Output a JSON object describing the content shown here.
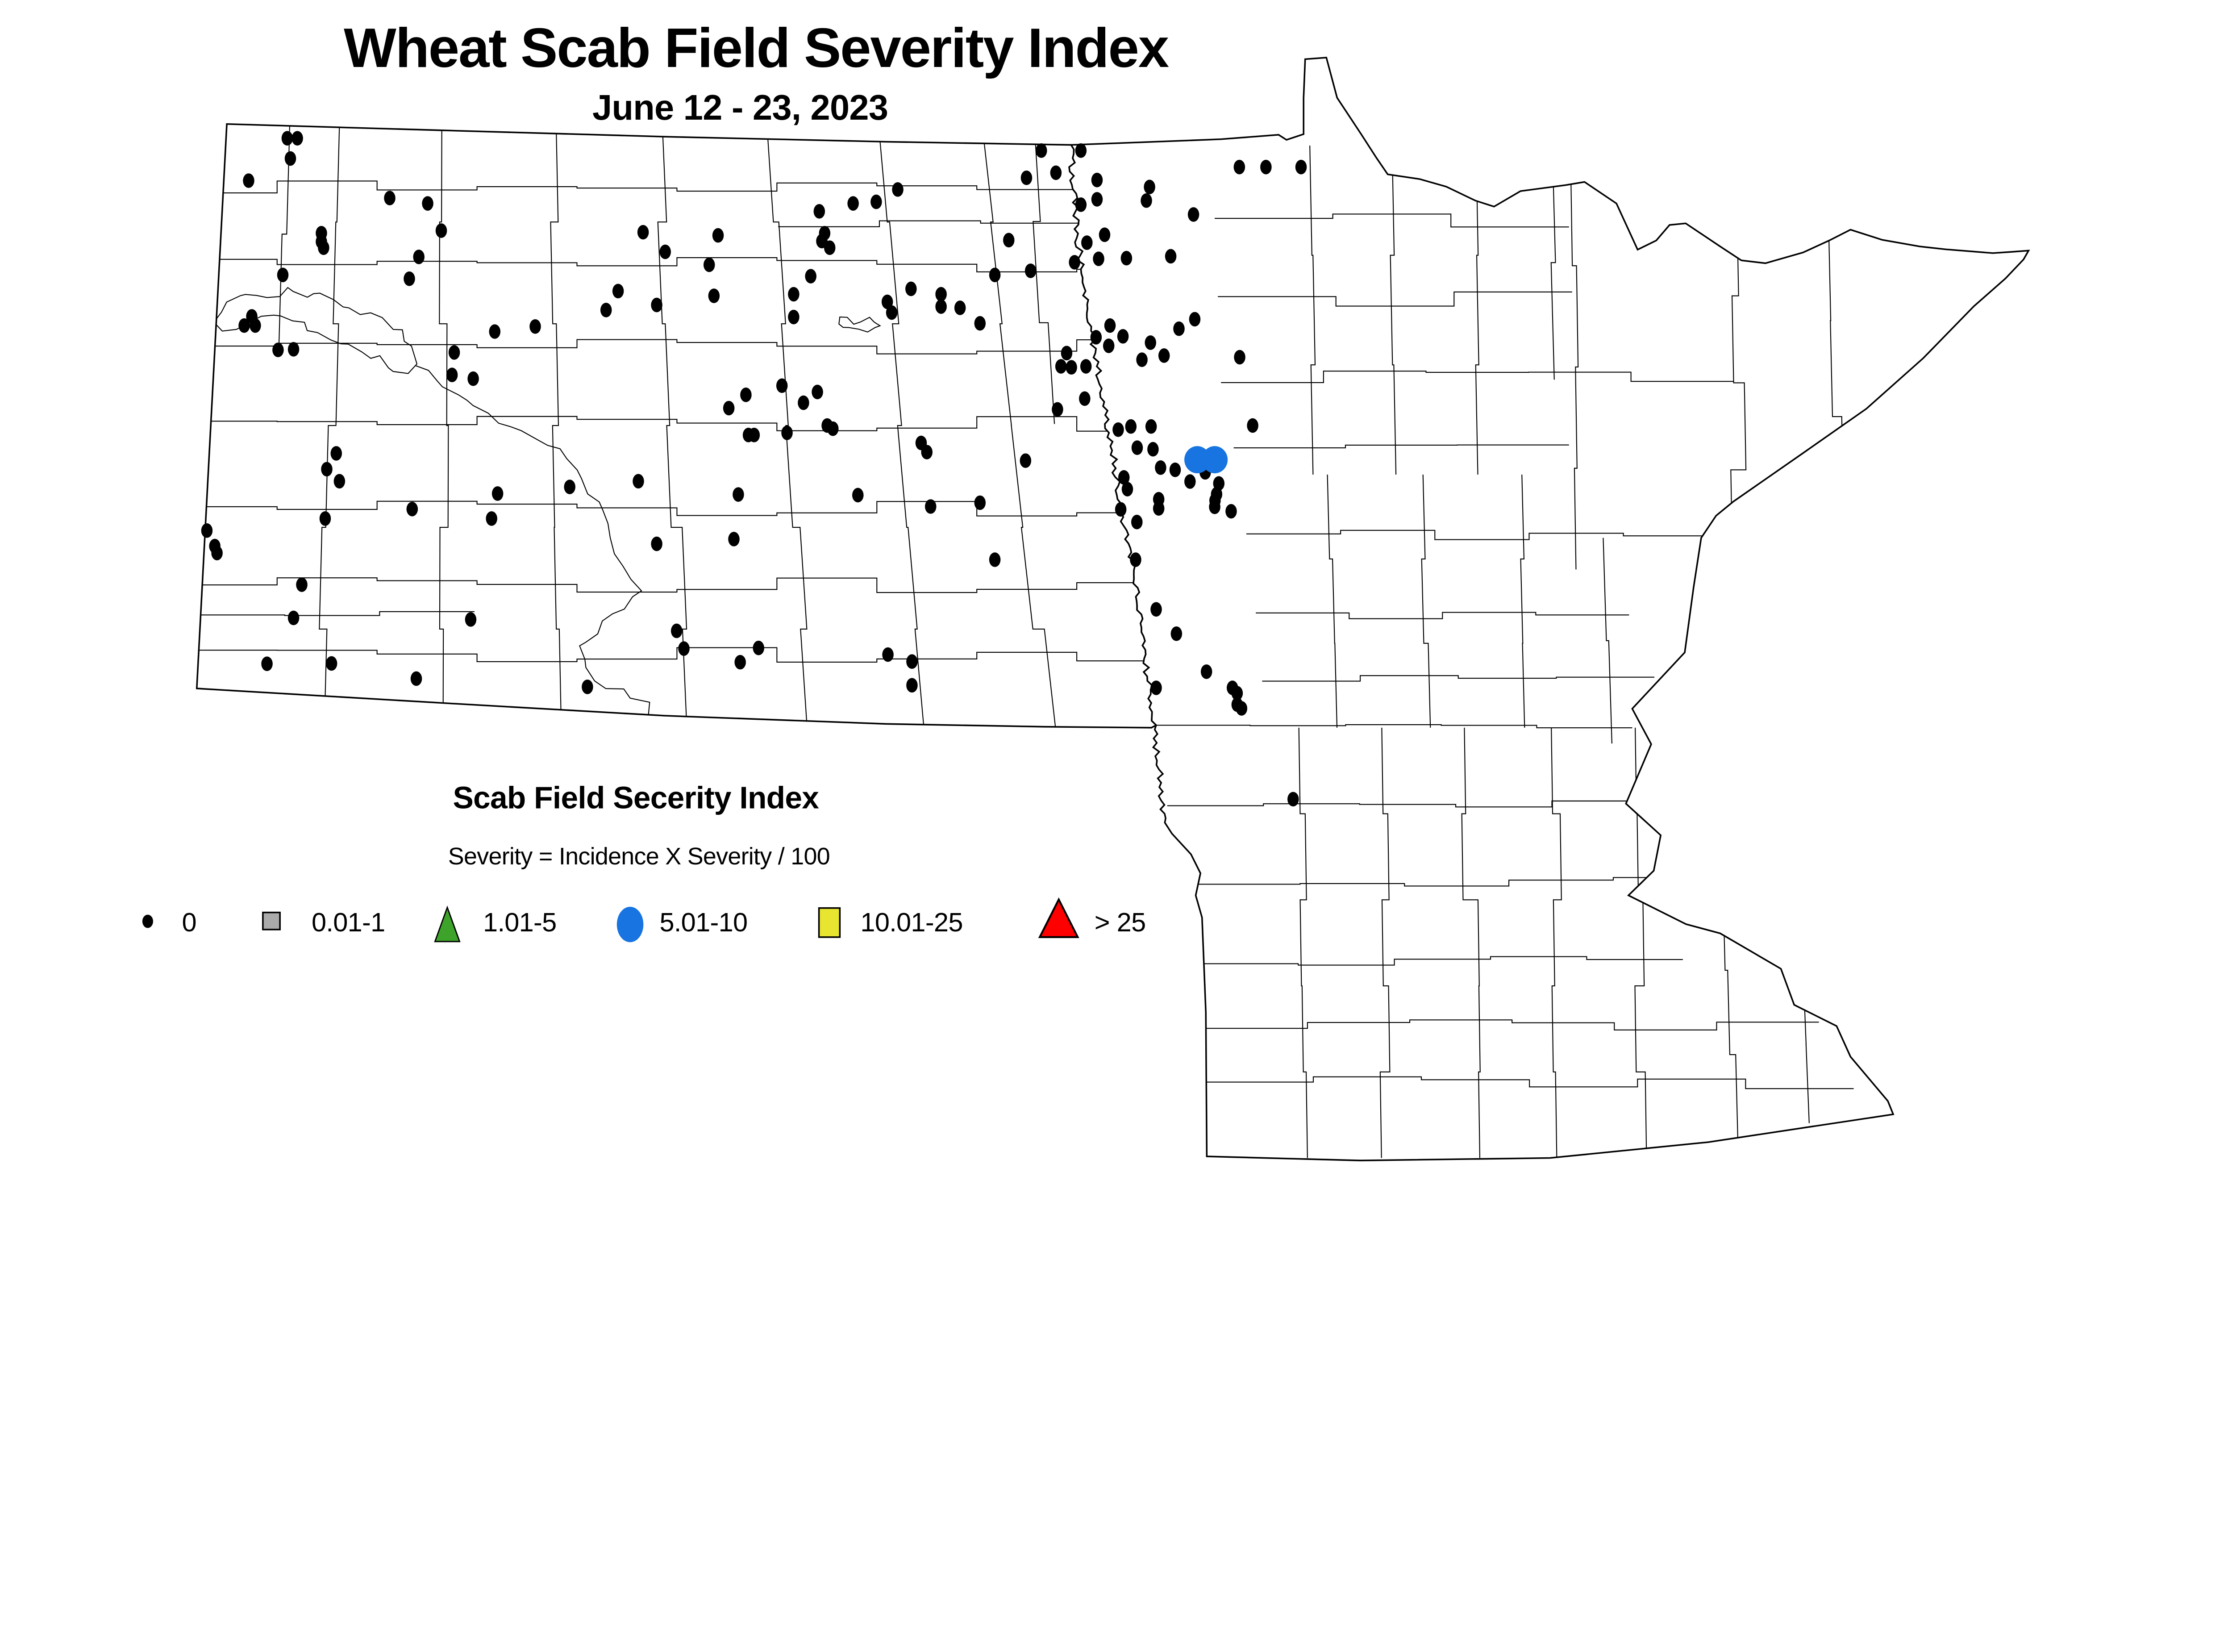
{
  "title": "Wheat Scab Field Severity Index",
  "subtitle": "June 12 - 23, 2023",
  "legend": {
    "title": "Scab Field Secerity Index",
    "formula": "Severity = Incidence X Severity / 100",
    "items": [
      {
        "label": "0",
        "shape": "dot",
        "color": "#000000"
      },
      {
        "label": "0.01-1",
        "shape": "square",
        "color": "#ABABAB"
      },
      {
        "label": "1.01-5",
        "shape": "triangle",
        "color": "#3EA32A"
      },
      {
        "label": "5.01-10",
        "shape": "ellipse",
        "color": "#1874E0"
      },
      {
        "label": "10.01-25",
        "shape": "square",
        "color": "#E8E531"
      },
      {
        "label": "> 25",
        "shape": "triangle",
        "color": "#FF0000"
      }
    ]
  },
  "chart_data": {
    "type": "scatter",
    "title": "Wheat Scab Field Severity Index",
    "subtitle": "June 12 - 23, 2023",
    "region": "North Dakota and Minnesota counties",
    "series": [
      {
        "name": "severity 0",
        "marker": "small black dot",
        "color": "#000000",
        "points": [
          [
            908,
            437
          ],
          [
            940,
            437
          ],
          [
            918,
            501
          ],
          [
            786,
            571
          ],
          [
            1232,
            626
          ],
          [
            1352,
            643
          ],
          [
            1395,
            729
          ],
          [
            2033,
            734
          ],
          [
            2270,
            744
          ],
          [
            1016,
            737
          ],
          [
            1016,
            764
          ],
          [
            1023,
            783
          ],
          [
            1324,
            812
          ],
          [
            2103,
            796
          ],
          [
            894,
            869
          ],
          [
            1294,
            881
          ],
          [
            2242,
            837
          ],
          [
            1954,
            920
          ],
          [
            2257,
            935
          ],
          [
            2076,
            964
          ],
          [
            1916,
            980
          ],
          [
            796,
            1000
          ],
          [
            807,
            1029
          ],
          [
            772,
            1029
          ],
          [
            1692,
            1032
          ],
          [
            1564,
            1048
          ],
          [
            879,
            1106
          ],
          [
            928,
            1104
          ],
          [
            1436,
            1114
          ],
          [
            1429,
            1185
          ],
          [
            1496,
            1197
          ],
          [
            2358,
            1248
          ],
          [
            2304,
            1290
          ],
          [
            2366,
            1375
          ],
          [
            2384,
            1375
          ],
          [
            3292,
            476
          ],
          [
            3417,
            476
          ],
          [
            3338,
            546
          ],
          [
            3245,
            562
          ],
          [
            3468,
            569
          ],
          [
            3634,
            591
          ],
          [
            3918,
            528
          ],
          [
            4002,
            528
          ],
          [
            4113,
            528
          ],
          [
            2838,
            599
          ],
          [
            2770,
            638
          ],
          [
            2697,
            643
          ],
          [
            2590,
            668
          ],
          [
            3468,
            630
          ],
          [
            3624,
            634
          ],
          [
            3417,
            647
          ],
          [
            3773,
            678
          ],
          [
            2607,
            737
          ],
          [
            2598,
            762
          ],
          [
            2623,
            783
          ],
          [
            3189,
            759
          ],
          [
            3492,
            742
          ],
          [
            3436,
            767
          ],
          [
            3397,
            829
          ],
          [
            3473,
            818
          ],
          [
            3561,
            816
          ],
          [
            3701,
            810
          ],
          [
            3145,
            869
          ],
          [
            3258,
            856
          ],
          [
            2880,
            913
          ],
          [
            2975,
            930
          ],
          [
            2805,
            954
          ],
          [
            2819,
            988
          ],
          [
            2975,
            969
          ],
          [
            3035,
            973
          ],
          [
            2509,
            930
          ],
          [
            2563,
            873
          ],
          [
            2509,
            1002
          ],
          [
            3098,
            1022
          ],
          [
            3509,
            1029
          ],
          [
            3465,
            1066
          ],
          [
            3550,
            1063
          ],
          [
            3505,
            1093
          ],
          [
            3637,
            1083
          ],
          [
            3777,
            1009
          ],
          [
            3727,
            1039
          ],
          [
            3680,
            1124
          ],
          [
            3610,
            1137
          ],
          [
            3372,
            1116
          ],
          [
            3354,
            1158
          ],
          [
            3387,
            1161
          ],
          [
            3433,
            1158
          ],
          [
            3919,
            1129
          ],
          [
            2472,
            1219
          ],
          [
            2584,
            1239
          ],
          [
            2540,
            1273
          ],
          [
            2615,
            1345
          ],
          [
            2633,
            1355
          ],
          [
            2488,
            1368
          ],
          [
            3429,
            1260
          ],
          [
            3343,
            1294
          ],
          [
            3575,
            1348
          ],
          [
            3639,
            1348
          ],
          [
            3535,
            1358
          ],
          [
            3960,
            1345
          ],
          [
            2912,
            1400
          ],
          [
            1063,
            1433
          ],
          [
            1033,
            1483
          ],
          [
            1073,
            1521
          ],
          [
            654,
            1677
          ],
          [
            679,
            1726
          ],
          [
            686,
            1748
          ],
          [
            1303,
            1609
          ],
          [
            1028,
            1639
          ],
          [
            1573,
            1560
          ],
          [
            1801,
            1539
          ],
          [
            1554,
            1639
          ],
          [
            2018,
            1521
          ],
          [
            2334,
            1563
          ],
          [
            2076,
            1719
          ],
          [
            2320,
            1704
          ],
          [
            954,
            1848
          ],
          [
            928,
            1953
          ],
          [
            1488,
            1958
          ],
          [
            844,
            2098
          ],
          [
            1048,
            2097
          ],
          [
            1316,
            2145
          ],
          [
            1857,
            2171
          ],
          [
            2139,
            1994
          ],
          [
            2162,
            2050
          ],
          [
            2398,
            2048
          ],
          [
            2340,
            2093
          ],
          [
            2930,
            1429
          ],
          [
            3242,
            1456
          ],
          [
            3595,
            1415
          ],
          [
            3645,
            1420
          ],
          [
            3669,
            1478
          ],
          [
            3715,
            1485
          ],
          [
            2712,
            1565
          ],
          [
            2942,
            1601
          ],
          [
            3098,
            1589
          ],
          [
            3553,
            1509
          ],
          [
            3564,
            1546
          ],
          [
            3663,
            1578
          ],
          [
            3663,
            1607
          ],
          [
            3543,
            1610
          ],
          [
            3594,
            1650
          ],
          [
            3762,
            1522
          ],
          [
            3810,
            1493
          ],
          [
            3853,
            1528
          ],
          [
            3846,
            1562
          ],
          [
            3841,
            1582
          ],
          [
            3840,
            1602
          ],
          [
            3892,
            1616
          ],
          [
            3145,
            1769
          ],
          [
            3590,
            1769
          ],
          [
            3655,
            1926
          ],
          [
            3719,
            2003
          ],
          [
            2807,
            2069
          ],
          [
            2883,
            2091
          ],
          [
            2883,
            2166
          ],
          [
            3655,
            2174
          ],
          [
            3814,
            2123
          ],
          [
            3896,
            2174
          ],
          [
            3911,
            2191
          ],
          [
            3911,
            2227
          ],
          [
            3925,
            2239
          ],
          [
            4088,
            2526
          ]
        ]
      },
      {
        "name": "severity 5.01-10",
        "marker": "large blue circle",
        "color": "#1874E0",
        "points": [
          [
            3785,
            1453
          ],
          [
            3840,
            1453
          ]
        ]
      }
    ]
  }
}
